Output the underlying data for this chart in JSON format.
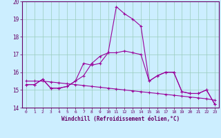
{
  "xlabel": "Windchill (Refroidissement éolien,°C)",
  "hours": [
    0,
    1,
    2,
    3,
    4,
    5,
    6,
    7,
    8,
    9,
    10,
    11,
    12,
    13,
    14,
    15,
    16,
    17,
    18,
    19,
    20,
    21,
    22,
    23
  ],
  "line_peak": [
    15.3,
    15.3,
    15.6,
    15.1,
    15.1,
    15.2,
    15.5,
    16.5,
    16.4,
    16.5,
    17.1,
    19.7,
    19.3,
    19.0,
    18.6,
    15.5,
    15.8,
    16.0,
    16.0,
    14.9,
    14.8,
    14.8,
    15.0,
    14.2
  ],
  "line_mid": [
    15.3,
    15.3,
    15.6,
    15.1,
    15.1,
    15.2,
    15.5,
    15.8,
    16.5,
    16.9,
    17.1,
    17.1,
    17.2,
    17.1,
    17.0,
    15.5,
    15.8,
    16.0,
    16.0,
    14.9,
    14.8,
    14.8,
    15.0,
    14.2
  ],
  "line_low": [
    15.5,
    15.5,
    15.5,
    15.45,
    15.4,
    15.35,
    15.3,
    15.25,
    15.2,
    15.15,
    15.1,
    15.05,
    15.0,
    14.95,
    14.9,
    14.85,
    14.8,
    14.75,
    14.7,
    14.65,
    14.6,
    14.55,
    14.5,
    14.42
  ],
  "ylim": [
    14.0,
    20.0
  ],
  "yticks": [
    14,
    15,
    16,
    17,
    18,
    19,
    20
  ],
  "line_color": "#990099",
  "bg_color": "#cceeff",
  "grid_color": "#99ccbb",
  "text_color": "#660066",
  "spine_color": "#660066"
}
